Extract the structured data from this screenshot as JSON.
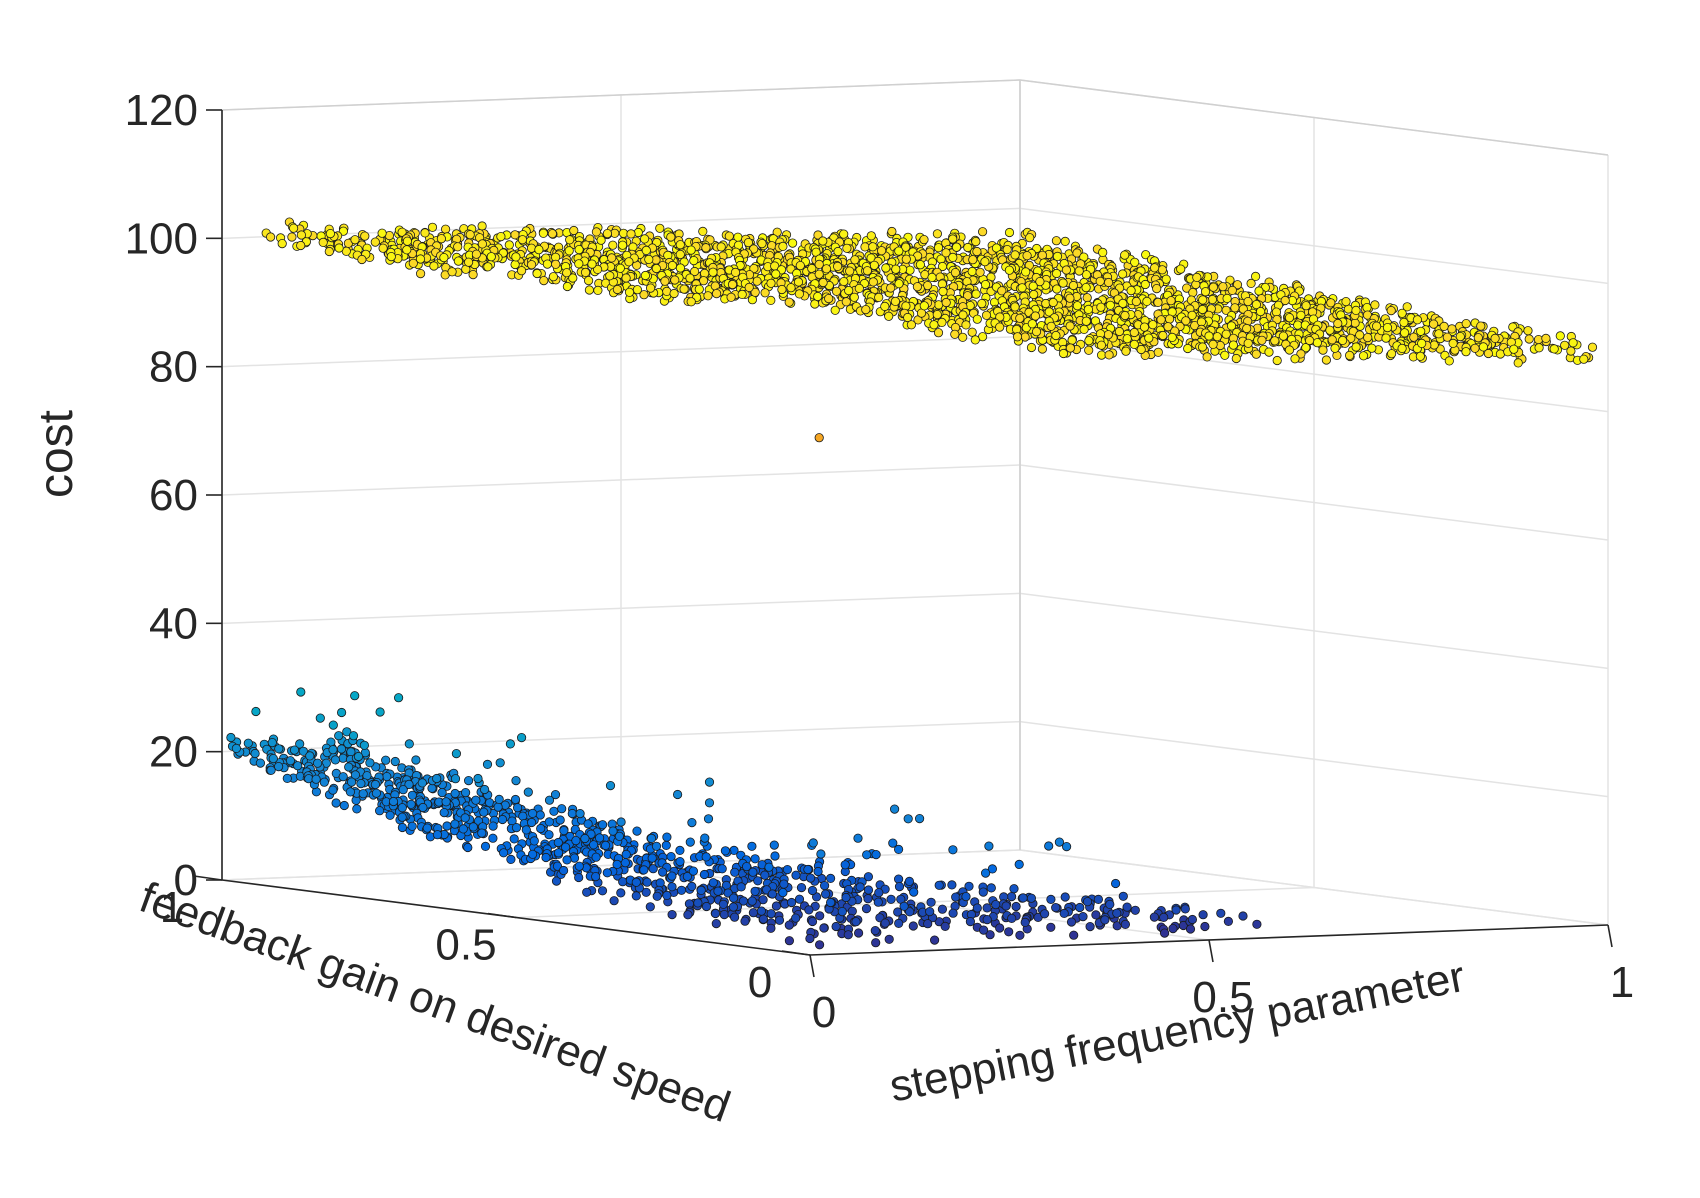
{
  "chart_data": {
    "type": "scatter",
    "projection": "3d",
    "title": "",
    "xlabel": "stepping frequency parameter",
    "ylabel": "feedback gain on desired speed",
    "zlabel": "cost",
    "xlim": [
      0,
      1
    ],
    "ylim": [
      0,
      1
    ],
    "zlim": [
      0,
      120
    ],
    "xticks": [
      0,
      0.5,
      1
    ],
    "yticks": [
      0,
      0.5,
      1
    ],
    "zticks": [
      0,
      20,
      40,
      60,
      80,
      100,
      120
    ],
    "x_tick_labels": [
      "0",
      "0.5",
      "1"
    ],
    "y_tick_labels": [
      "0",
      "0.5",
      "1"
    ],
    "z_tick_labels": [
      "0",
      "20",
      "40",
      "60",
      "80",
      "100",
      "120"
    ],
    "grid": true,
    "box": "back-planes",
    "colormap": "parula",
    "colors": {
      "low": "#3e26a8",
      "mid": "#1e8cde",
      "high": "#f0e442",
      "outlier": "#f5a623"
    },
    "clusters": [
      {
        "description_region": "high plateau",
        "x_range": [
          0.05,
          1.0
        ],
        "y_range": [
          0.0,
          1.0
        ],
        "z_range": [
          89,
          103
        ],
        "color_level": 0.97
      },
      {
        "description_region": "low valley",
        "x_range": [
          0.0,
          0.55
        ],
        "y_range": [
          0.0,
          1.0
        ],
        "z_range": [
          0,
          28
        ],
        "color_level": 0.1
      }
    ],
    "outliers": [
      {
        "x": 0.38,
        "y": 0.5,
        "z": 73
      }
    ]
  }
}
